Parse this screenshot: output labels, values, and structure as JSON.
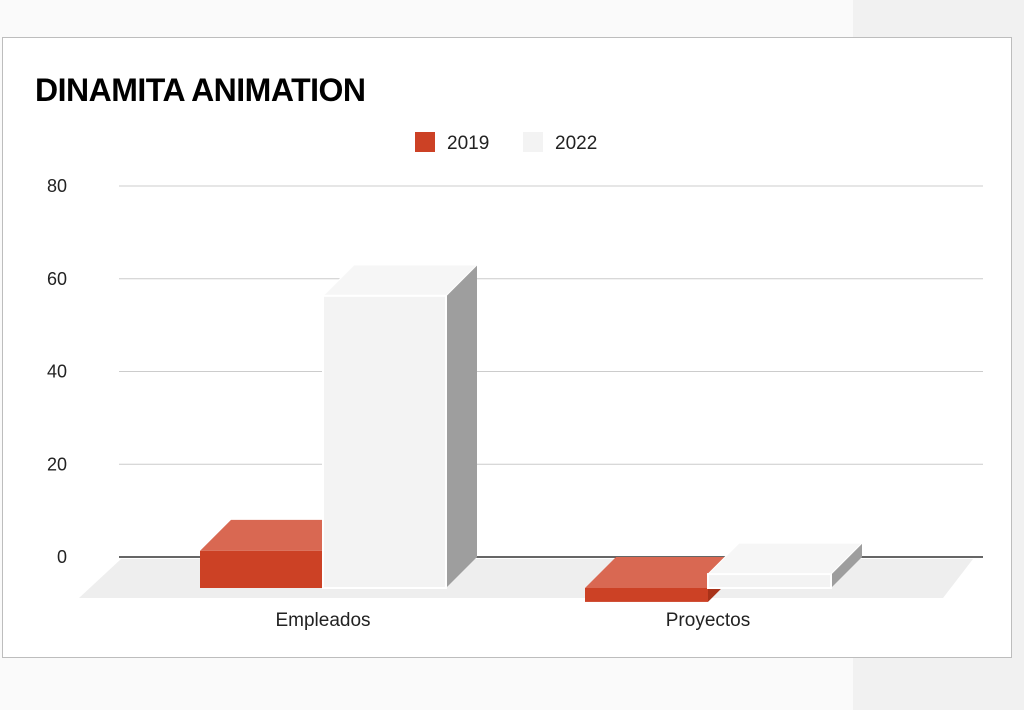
{
  "chart_data": {
    "type": "bar",
    "title": "DINAMITA ANIMATION",
    "categories": [
      "Empleados",
      "Proyectos"
    ],
    "series": [
      {
        "name": "2019",
        "values": [
          8,
          -3
        ],
        "color": "#cc4125",
        "top_color": "#d96852",
        "side_color": "#a83219"
      },
      {
        "name": "2022",
        "values": [
          63,
          3
        ],
        "color": "#f3f3f3",
        "top_color": "#f6f6f6",
        "side_color": "#9e9e9e"
      }
    ],
    "yticks": [
      0,
      20,
      40,
      60,
      80
    ],
    "ylim": [
      0,
      80
    ],
    "xlabel": "",
    "ylabel": "",
    "grid": true,
    "legend_position": "top"
  }
}
